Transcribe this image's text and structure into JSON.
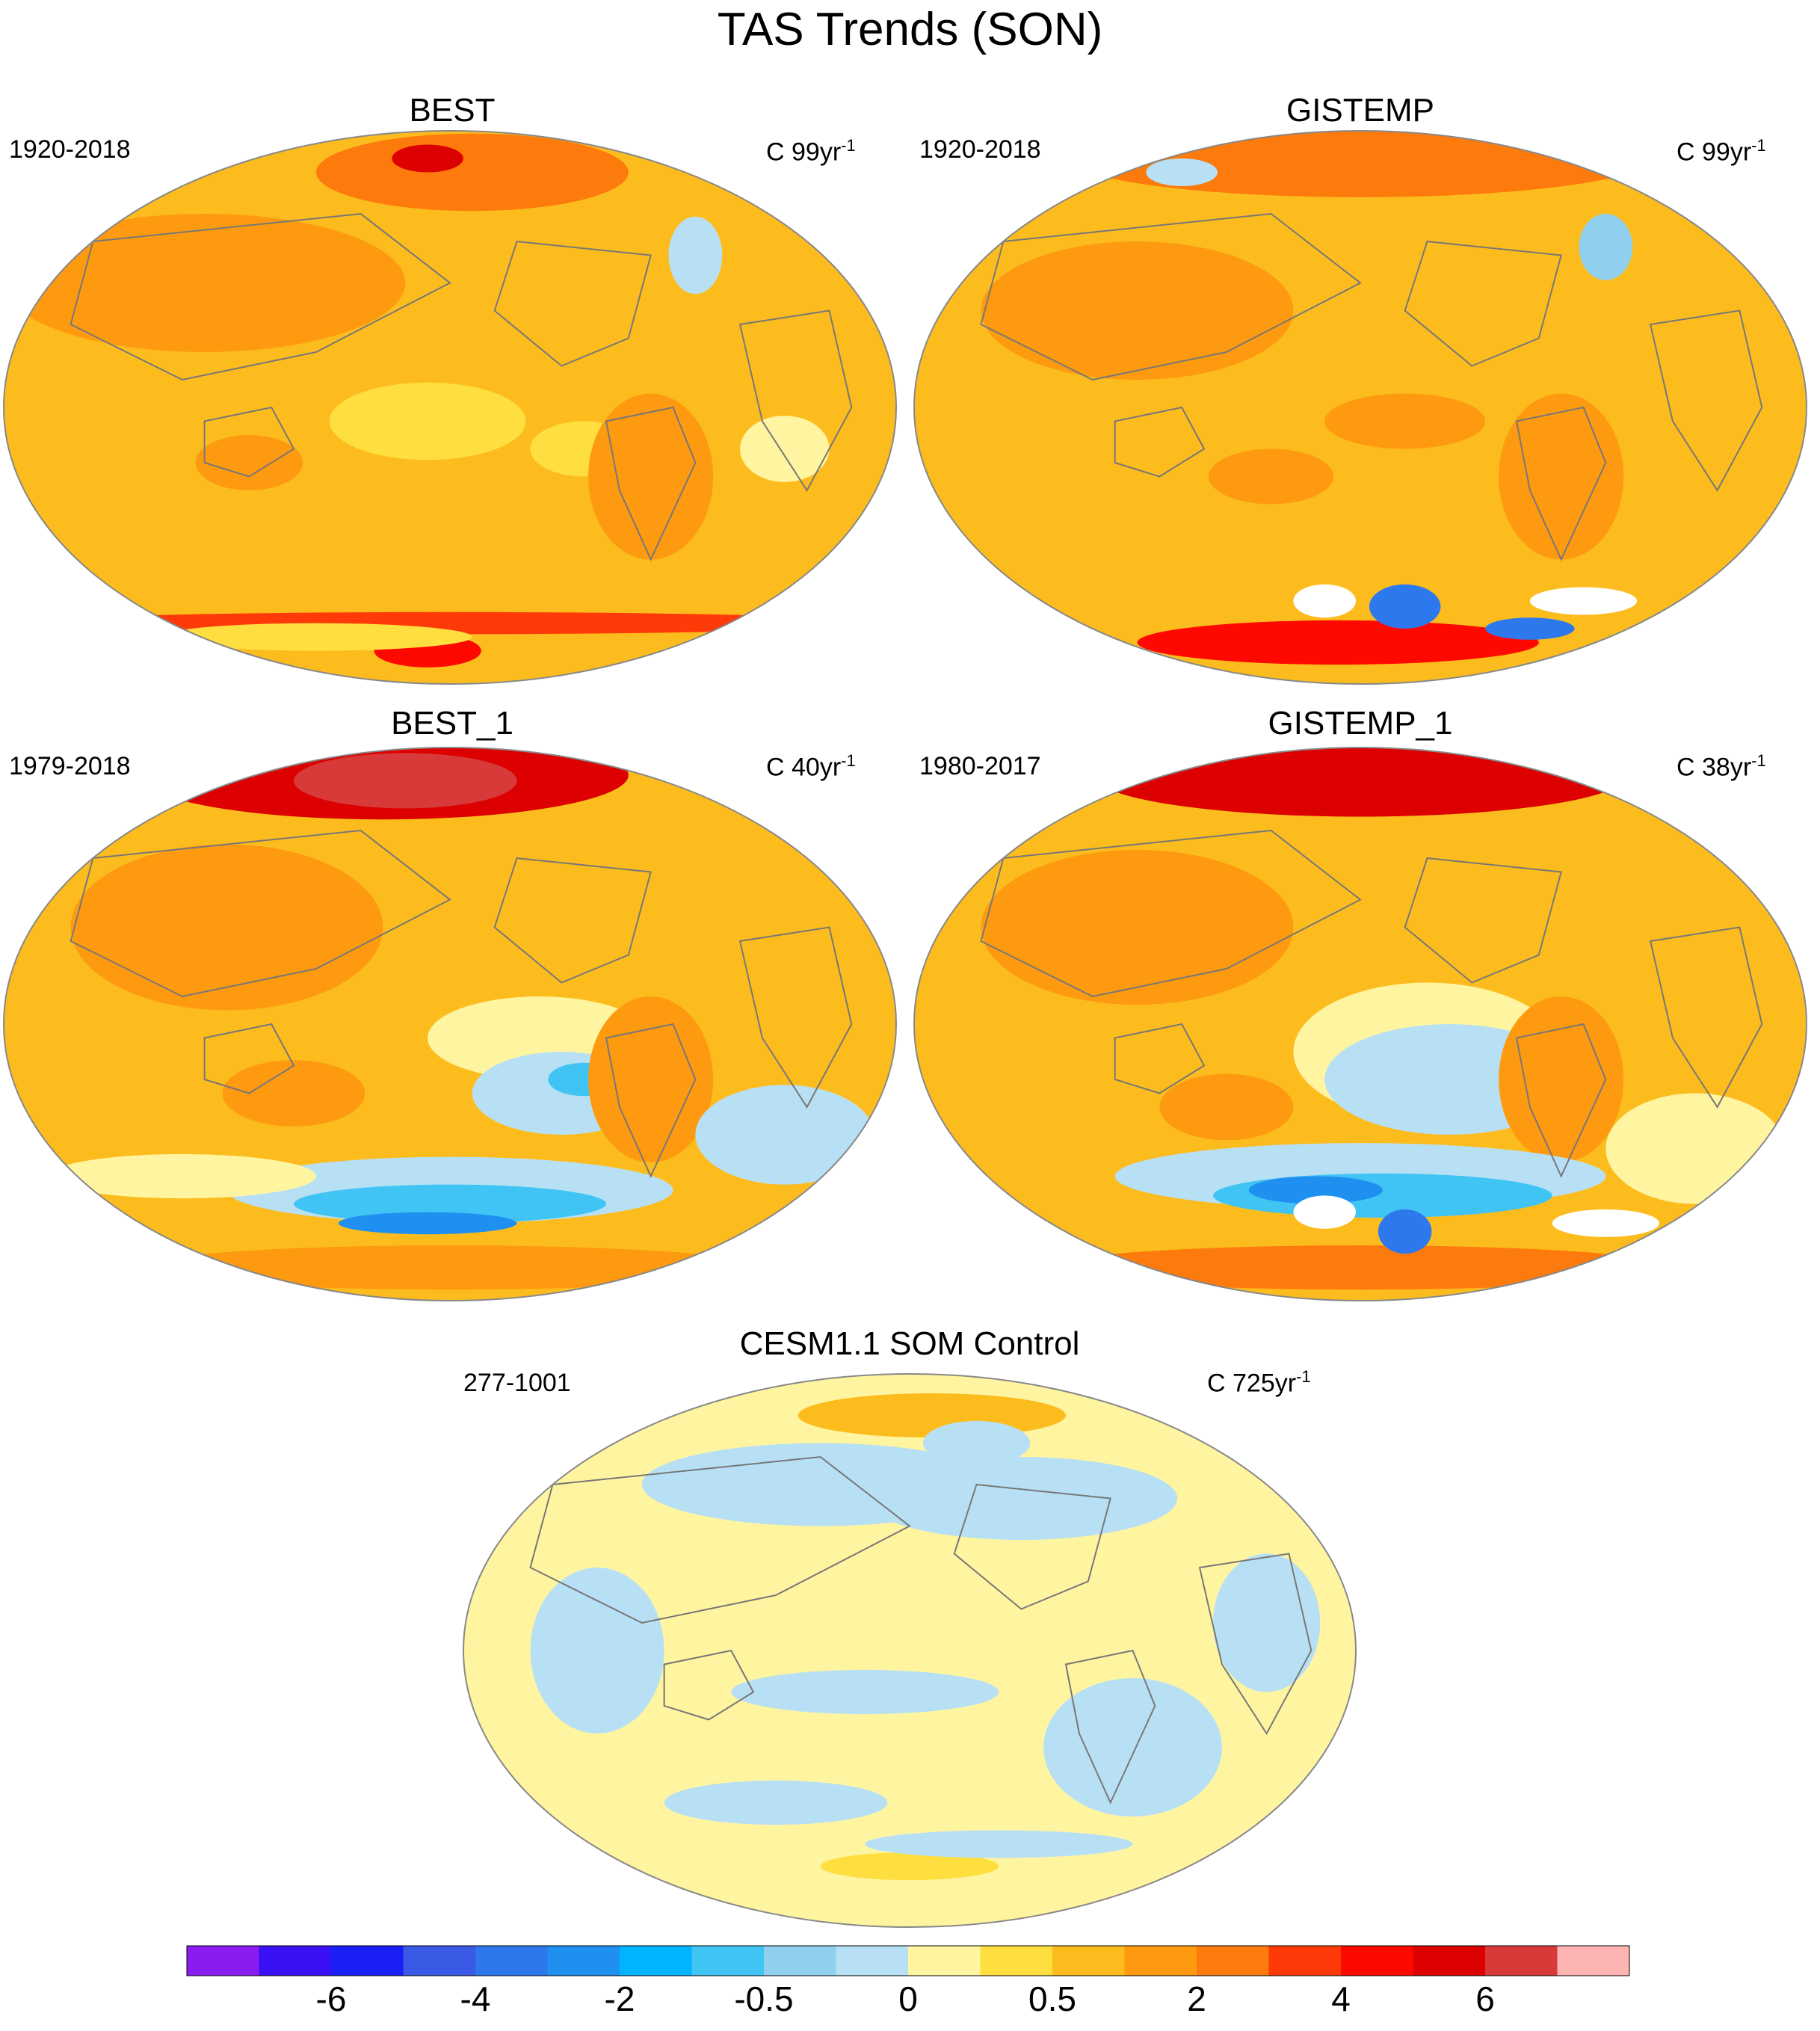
{
  "title": "TAS Trends (SON)",
  "panels": [
    {
      "id": "best",
      "title": "BEST",
      "left": "1920-2018",
      "right_prefix": "C 99yr",
      "right_exp": "-1",
      "scheme": "warm-a"
    },
    {
      "id": "gistemp",
      "title": "GISTEMP",
      "left": "1920-2018",
      "right_prefix": "C 99yr",
      "right_exp": "-1",
      "scheme": "warm-b"
    },
    {
      "id": "best1",
      "title": "BEST_1",
      "left": "1979-2018",
      "right_prefix": "C 40yr",
      "right_exp": "-1",
      "scheme": "warm-c"
    },
    {
      "id": "gistemp1",
      "title": "GISTEMP_1",
      "left": "1980-2017",
      "right_prefix": "C 38yr",
      "right_exp": "-1",
      "scheme": "warm-d"
    },
    {
      "id": "cesm",
      "title": "CESM1.1 SOM Control",
      "left": "277-1001",
      "right_prefix": "C 725yr",
      "right_exp": "-1",
      "scheme": "neutral"
    }
  ],
  "colorbar": {
    "colors": [
      "#8a1cf0",
      "#3a10f5",
      "#1a20f5",
      "#3a5ae6",
      "#2e78ee",
      "#2090f0",
      "#00b4ff",
      "#40c4f4",
      "#90d0ee",
      "#b8e0f5",
      "#fff5a0",
      "#ffdf40",
      "#fdbc1e",
      "#fd9a10",
      "#fd7a0c",
      "#ff3a08",
      "#ff0800",
      "#dd0000",
      "#d83a3a",
      "#ffb4b4"
    ],
    "tick_labels": [
      "-6",
      "-4",
      "-2",
      "-0.5",
      "0",
      "0.5",
      "2",
      "4",
      "6"
    ]
  }
}
